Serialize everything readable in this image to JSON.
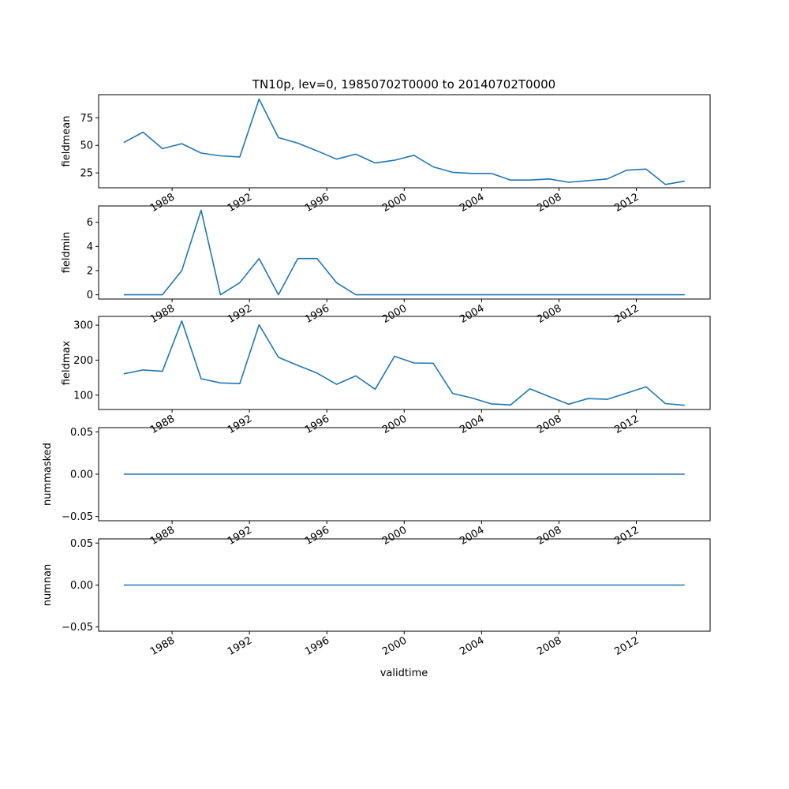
{
  "chart_data": {
    "type": "line",
    "title": "TN10p, lev=0, 19850702T0000 to 20140702T0000",
    "xlabel": "validtime",
    "x_tick_labels": [
      "1988",
      "1992",
      "1996",
      "2000",
      "2004",
      "2008",
      "2012"
    ],
    "x": [
      "1985-07-02",
      "1986-07-02",
      "1987-07-02",
      "1988-07-02",
      "1989-07-02",
      "1990-07-02",
      "1991-07-02",
      "1992-07-02",
      "1993-07-02",
      "1994-07-02",
      "1995-07-02",
      "1996-07-02",
      "1997-07-02",
      "1998-07-02",
      "1999-07-02",
      "2000-07-02",
      "2001-07-02",
      "2002-07-02",
      "2003-07-02",
      "2004-07-02",
      "2005-07-02",
      "2006-07-02",
      "2007-07-02",
      "2008-07-02",
      "2009-07-02",
      "2010-07-02",
      "2011-07-02",
      "2012-07-02",
      "2013-07-02",
      "2014-07-02"
    ],
    "xlim": [
      "1984-03-15",
      "2015-10-25"
    ],
    "color": "#1f77b4",
    "subplots": [
      {
        "ylabel": "fieldmean",
        "ylim": [
          11.5,
          96
        ],
        "yticks": [
          25,
          50,
          75
        ],
        "ytick_labels": [
          "25",
          "50",
          "75"
        ],
        "values": [
          52.5,
          62,
          47,
          51.5,
          43,
          40.5,
          39.5,
          92,
          57,
          52,
          45,
          37.5,
          42,
          34,
          36.5,
          41,
          30.5,
          25.5,
          24.5,
          24.5,
          18.5,
          18.5,
          19.5,
          16.5,
          18,
          19.5,
          27.5,
          28.5,
          14.5,
          17.5
        ]
      },
      {
        "ylabel": "fieldmin",
        "ylim": [
          -0.35,
          7.35
        ],
        "yticks": [
          0,
          2,
          4,
          6
        ],
        "ytick_labels": [
          "0",
          "2",
          "4",
          "6"
        ],
        "values": [
          0,
          0,
          0,
          2,
          7,
          0,
          1,
          3,
          0,
          3,
          3,
          1,
          0,
          0,
          0,
          0,
          0,
          0,
          0,
          0,
          0,
          0,
          0,
          0,
          0,
          0,
          0,
          0,
          0,
          0
        ]
      },
      {
        "ylabel": "fieldmax",
        "ylim": [
          59,
          325
        ],
        "yticks": [
          100,
          200,
          300
        ],
        "ytick_labels": [
          "100",
          "200",
          "300"
        ],
        "values": [
          161,
          172,
          168,
          312,
          147,
          135,
          133,
          301,
          208,
          185,
          163,
          131,
          155,
          117,
          211,
          192,
          191,
          105,
          92,
          75,
          72,
          118,
          96,
          74,
          90,
          88,
          106,
          124,
          76,
          71
        ]
      },
      {
        "ylabel": "nummasked",
        "ylim": [
          -0.055,
          0.055
        ],
        "yticks": [
          -0.05,
          0,
          0.05
        ],
        "ytick_labels": [
          "−0.05",
          "0.00",
          "0.05"
        ],
        "values": [
          0,
          0,
          0,
          0,
          0,
          0,
          0,
          0,
          0,
          0,
          0,
          0,
          0,
          0,
          0,
          0,
          0,
          0,
          0,
          0,
          0,
          0,
          0,
          0,
          0,
          0,
          0,
          0,
          0,
          0
        ]
      },
      {
        "ylabel": "numnan",
        "ylim": [
          -0.055,
          0.055
        ],
        "yticks": [
          -0.05,
          0,
          0.05
        ],
        "ytick_labels": [
          "−0.05",
          "0.00",
          "0.05"
        ],
        "values": [
          0,
          0,
          0,
          0,
          0,
          0,
          0,
          0,
          0,
          0,
          0,
          0,
          0,
          0,
          0,
          0,
          0,
          0,
          0,
          0,
          0,
          0,
          0,
          0,
          0,
          0,
          0,
          0,
          0,
          0
        ]
      }
    ]
  }
}
